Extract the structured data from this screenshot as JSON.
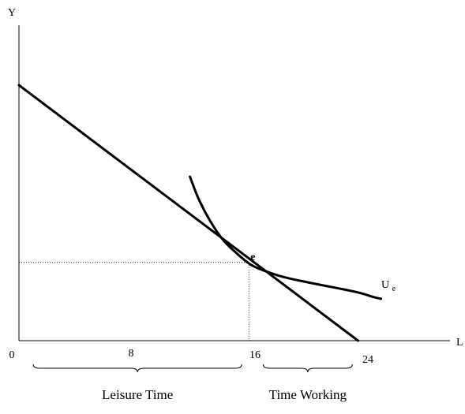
{
  "chart_data": {
    "type": "line",
    "title": "",
    "xlabel": "L",
    "ylabel": "Y",
    "xlim": [
      0,
      30
    ],
    "ylim": [
      0,
      100
    ],
    "grid": false,
    "x_ticks": [
      {
        "value": 0,
        "label": "0"
      },
      {
        "value": 8,
        "label": "8"
      },
      {
        "value": 16,
        "label": "16"
      },
      {
        "value": 24,
        "label": "24"
      }
    ],
    "budget_line": {
      "points": [
        [
          0,
          81
        ],
        [
          23.6,
          0
        ]
      ]
    },
    "indifference_curve": {
      "label_main": "U",
      "label_sub": "e",
      "points": [
        [
          11.9,
          52
        ],
        [
          12.5,
          45
        ],
        [
          13.3,
          38
        ],
        [
          14.2,
          32
        ],
        [
          15.2,
          27.5
        ],
        [
          16.1,
          24.2
        ],
        [
          17.0,
          22.3
        ],
        [
          18.4,
          20.2
        ],
        [
          20.2,
          18.4
        ],
        [
          22.0,
          16.8
        ],
        [
          23.6,
          15.3
        ],
        [
          24.7,
          13.8
        ],
        [
          25.2,
          13.3
        ]
      ]
    },
    "equilibrium": {
      "label": "e",
      "x": 16,
      "y": 24.8
    },
    "braces": [
      {
        "label": "Leisure Time",
        "x_from": 1,
        "x_to": 15.5
      },
      {
        "label": "Time Working",
        "x_from": 17,
        "x_to": 23.2
      }
    ]
  }
}
